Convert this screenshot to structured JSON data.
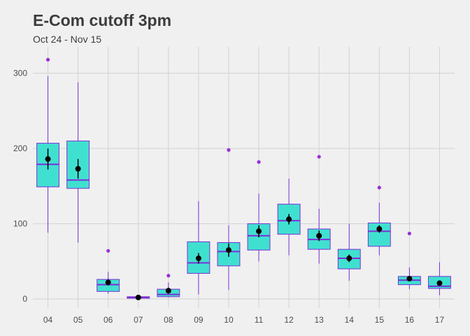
{
  "title": "E-Com cutoff 3pm",
  "subtitle": "Oct 24 - Nov 15",
  "colors": {
    "background": "#f0f0f0",
    "grid": "#d2d2d2",
    "box_fill": "#40e0d0",
    "box_border": "#7b2fd6",
    "outlier": "#9b2fd6",
    "mean_point": "#000000"
  },
  "chart_data": {
    "type": "boxplot",
    "title": "E-Com cutoff 3pm",
    "subtitle": "Oct 24 - Nov 15",
    "xlabel": "",
    "ylabel": "",
    "ylim": [
      -12,
      335
    ],
    "yticks": [
      0,
      100,
      200,
      300
    ],
    "grid": true,
    "categories": [
      "04",
      "05",
      "06",
      "07",
      "08",
      "09",
      "10",
      "11",
      "12",
      "13",
      "14",
      "15",
      "16",
      "17"
    ],
    "boxes": [
      {
        "category": "04",
        "whisker_low": 88,
        "q1": 149,
        "median": 179,
        "q3": 207,
        "whisker_high": 296,
        "mean": 186,
        "mean_low": 172,
        "mean_high": 200,
        "outliers": [
          318
        ]
      },
      {
        "category": "05",
        "whisker_low": 75,
        "q1": 147,
        "median": 158,
        "q3": 210,
        "whisker_high": 288,
        "mean": 173,
        "mean_low": 160,
        "mean_high": 186,
        "outliers": []
      },
      {
        "category": "06",
        "whisker_low": 7,
        "q1": 10,
        "median": 19,
        "q3": 26,
        "whisker_high": 36,
        "mean": 22,
        "mean_low": 18,
        "mean_high": 26,
        "outliers": [
          64
        ]
      },
      {
        "category": "07",
        "whisker_low": 0,
        "q1": 1,
        "median": 2,
        "q3": 3,
        "whisker_high": 4,
        "mean": 2,
        "mean_low": 1,
        "mean_high": 3,
        "outliers": []
      },
      {
        "category": "08",
        "whisker_low": 2,
        "q1": 3,
        "median": 6,
        "q3": 13,
        "whisker_high": 22,
        "mean": 11,
        "mean_low": 7,
        "mean_high": 15,
        "outliers": [
          31
        ]
      },
      {
        "category": "09",
        "whisker_low": 6,
        "q1": 34,
        "median": 48,
        "q3": 76,
        "whisker_high": 130,
        "mean": 54,
        "mean_low": 47,
        "mean_high": 61,
        "outliers": []
      },
      {
        "category": "10",
        "whisker_low": 12,
        "q1": 44,
        "median": 63,
        "q3": 75,
        "whisker_high": 98,
        "mean": 65,
        "mean_low": 56,
        "mean_high": 74,
        "outliers": [
          198
        ]
      },
      {
        "category": "11",
        "whisker_low": 50,
        "q1": 65,
        "median": 84,
        "q3": 100,
        "whisker_high": 140,
        "mean": 90,
        "mean_low": 82,
        "mean_high": 98,
        "outliers": [
          182
        ]
      },
      {
        "category": "12",
        "whisker_low": 58,
        "q1": 86,
        "median": 104,
        "q3": 126,
        "whisker_high": 160,
        "mean": 106,
        "mean_low": 99,
        "mean_high": 113,
        "outliers": []
      },
      {
        "category": "13",
        "whisker_low": 47,
        "q1": 66,
        "median": 79,
        "q3": 93,
        "whisker_high": 120,
        "mean": 84,
        "mean_low": 77,
        "mean_high": 91,
        "outliers": [
          189
        ]
      },
      {
        "category": "14",
        "whisker_low": 24,
        "q1": 40,
        "median": 54,
        "q3": 66,
        "whisker_high": 100,
        "mean": 54,
        "mean_low": 49,
        "mean_high": 59,
        "outliers": []
      },
      {
        "category": "15",
        "whisker_low": 58,
        "q1": 70,
        "median": 90,
        "q3": 101,
        "whisker_high": 128,
        "mean": 93,
        "mean_low": 88,
        "mean_high": 98,
        "outliers": [
          148
        ]
      },
      {
        "category": "16",
        "whisker_low": 13,
        "q1": 19,
        "median": 25,
        "q3": 30,
        "whisker_high": 42,
        "mean": 27,
        "mean_low": 24,
        "mean_high": 30,
        "outliers": [
          87
        ]
      },
      {
        "category": "17",
        "whisker_low": 5,
        "q1": 14,
        "median": 17,
        "q3": 30,
        "whisker_high": 49,
        "mean": 21,
        "mean_low": 18,
        "mean_high": 24,
        "outliers": []
      }
    ]
  }
}
